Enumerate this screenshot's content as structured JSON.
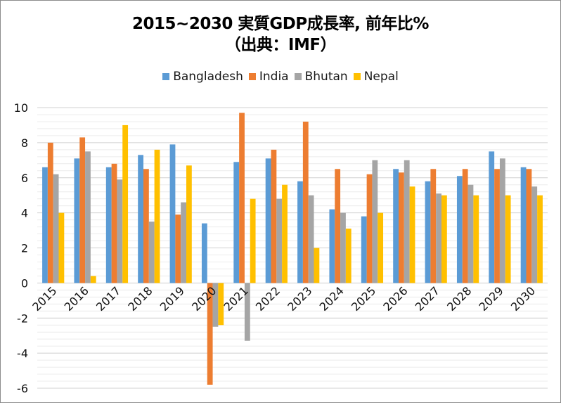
{
  "chart_data": {
    "type": "bar",
    "title": "2015~2030 実質GDP成長率, 前年比%",
    "subtitle": "（出典：IMF）",
    "xlabel": "",
    "ylabel": "",
    "ylim": [
      -6,
      10
    ],
    "ytick_step": 2,
    "minor_grid_step": 0.4,
    "grid": true,
    "legend_position": "top",
    "categories": [
      "2015",
      "2016",
      "2017",
      "2018",
      "2019",
      "2020",
      "2021",
      "2022",
      "2023",
      "2024",
      "2025",
      "2026",
      "2027",
      "2028",
      "2029",
      "2030"
    ],
    "yticks": [
      "10",
      "8",
      "6",
      "4",
      "2",
      "0",
      "-2",
      "-4",
      "-6"
    ],
    "series": [
      {
        "name": "Bangladesh",
        "color": "#5B9BD5",
        "values": [
          6.6,
          7.1,
          6.6,
          7.3,
          7.9,
          3.4,
          6.9,
          7.1,
          5.8,
          4.2,
          3.8,
          6.5,
          5.8,
          6.1,
          7.5,
          6.6
        ]
      },
      {
        "name": "India",
        "color": "#ED7D31",
        "values": [
          8.0,
          8.3,
          6.8,
          6.5,
          3.9,
          -5.8,
          9.7,
          7.6,
          9.2,
          6.5,
          6.2,
          6.3,
          6.5,
          6.5,
          6.5,
          6.5
        ]
      },
      {
        "name": "Bhutan",
        "color": "#A5A5A5",
        "values": [
          6.2,
          7.5,
          5.9,
          3.5,
          4.6,
          -2.5,
          -3.3,
          4.8,
          5.0,
          4.0,
          7.0,
          7.0,
          5.1,
          5.6,
          7.1,
          5.5
        ]
      },
      {
        "name": "Nepal",
        "color": "#FFC000",
        "values": [
          4.0,
          0.4,
          9.0,
          7.6,
          6.7,
          -2.4,
          4.8,
          5.6,
          2.0,
          3.1,
          4.0,
          5.5,
          5.0,
          5.0,
          5.0,
          5.0
        ]
      }
    ]
  }
}
